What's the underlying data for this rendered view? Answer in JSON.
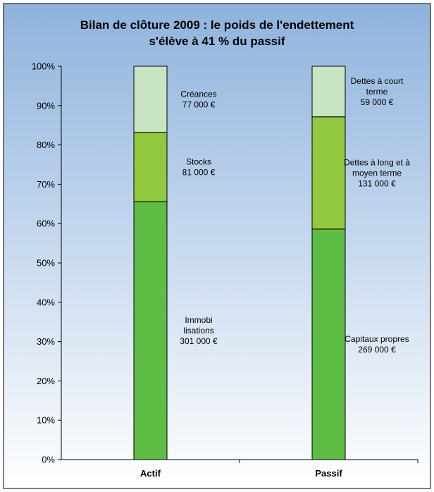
{
  "chart_data": {
    "type": "bar",
    "stacked": true,
    "percent_stacked": true,
    "title_lines": [
      "Bilan de clôture 2009 : le poids de l'endettement",
      "s'élève à 41 % du passif"
    ],
    "categories": [
      "Actif",
      "Passif"
    ],
    "ylim": [
      0,
      100
    ],
    "yticks": [
      "0%",
      "10%",
      "20%",
      "30%",
      "40%",
      "50%",
      "60%",
      "70%",
      "80%",
      "90%",
      "100%"
    ],
    "grid": false,
    "stacks": [
      {
        "category": "Actif",
        "segments": [
          {
            "value": 301000,
            "label_lines": [
              "Immobi",
              "lisations",
              "301 000 €"
            ],
            "color": "#5dbd45"
          },
          {
            "value": 81000,
            "label_lines": [
              "Stocks",
              "81 000 €"
            ],
            "color": "#92c83e"
          },
          {
            "value": 77000,
            "label_lines": [
              "Créances",
              "77 000 €"
            ],
            "color": "#c8e4c3"
          }
        ]
      },
      {
        "category": "Passif",
        "segments": [
          {
            "value": 269000,
            "label_lines": [
              "Capitaux propres",
              "269 000 €"
            ],
            "color": "#5dbd45"
          },
          {
            "value": 131000,
            "label_lines": [
              "Dettes à long et à",
              "moyen terme",
              "131 000 €"
            ],
            "color": "#92c83e"
          },
          {
            "value": 59000,
            "label_lines": [
              "Dettes à court",
              "terme",
              "59 000 €"
            ],
            "color": "#c8e4c3"
          }
        ]
      }
    ],
    "background_gradient": [
      "#8fb3dd",
      "#ffffff"
    ]
  }
}
